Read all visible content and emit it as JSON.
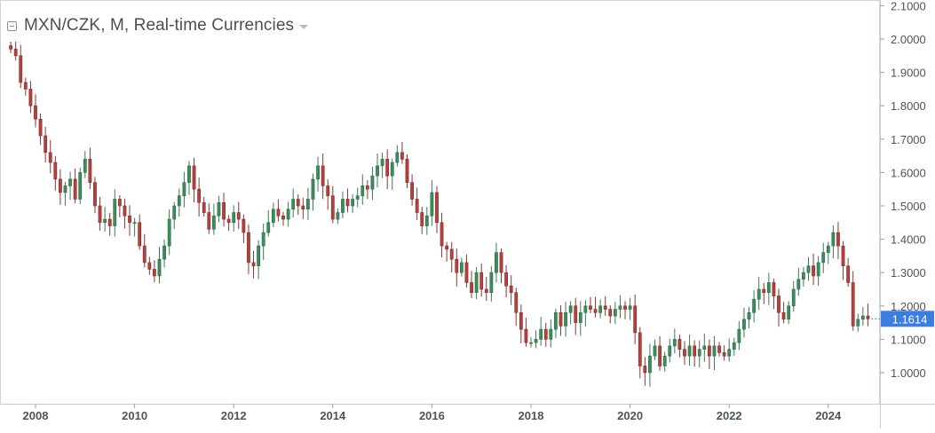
{
  "header": {
    "title": "MXN/CZK, M, Real-time Currencies"
  },
  "colors": {
    "up": "#3c8c5c",
    "down": "#b5413f",
    "price_tag": "#3b7de0",
    "axis_text": "#4e545b",
    "frame": "#d0d4d8"
  },
  "chart_data": {
    "type": "candlestick",
    "interval": "M",
    "symbol": "MXN/CZK",
    "y_ticks": [
      "2.1000",
      "2.0000",
      "1.9000",
      "1.8000",
      "1.7000",
      "1.6000",
      "1.5000",
      "1.4000",
      "1.3000",
      "1.2000",
      "1.1000",
      "1.0000"
    ],
    "x_ticks": [
      "2008",
      "2010",
      "2012",
      "2014",
      "2016",
      "2018",
      "2020",
      "2022",
      "2024"
    ],
    "last_price": "1.1614",
    "ylim": [
      0.955,
      2.11
    ],
    "xlim": [
      "2007-06",
      "2024-12"
    ],
    "approx_monthly_close": [
      [
        2007.5,
        1.97
      ],
      [
        2007.6,
        1.95
      ],
      [
        2007.7,
        1.87
      ],
      [
        2007.8,
        1.85
      ],
      [
        2007.9,
        1.8
      ],
      [
        2008.0,
        1.76
      ],
      [
        2008.1,
        1.71
      ],
      [
        2008.2,
        1.66
      ],
      [
        2008.3,
        1.63
      ],
      [
        2008.4,
        1.58
      ],
      [
        2008.5,
        1.54
      ],
      [
        2008.6,
        1.56
      ],
      [
        2008.7,
        1.58
      ],
      [
        2008.8,
        1.52
      ],
      [
        2008.9,
        1.6
      ],
      [
        2009.0,
        1.64
      ],
      [
        2009.1,
        1.57
      ],
      [
        2009.2,
        1.5
      ],
      [
        2009.3,
        1.45
      ],
      [
        2009.4,
        1.46
      ],
      [
        2009.5,
        1.44
      ],
      [
        2009.6,
        1.52
      ],
      [
        2009.7,
        1.5
      ],
      [
        2009.8,
        1.47
      ],
      [
        2009.9,
        1.45
      ],
      [
        2010.0,
        1.45
      ],
      [
        2010.1,
        1.38
      ],
      [
        2010.2,
        1.33
      ],
      [
        2010.3,
        1.31
      ],
      [
        2010.4,
        1.29
      ],
      [
        2010.5,
        1.34
      ],
      [
        2010.6,
        1.38
      ],
      [
        2010.7,
        1.46
      ],
      [
        2010.8,
        1.5
      ],
      [
        2010.9,
        1.53
      ],
      [
        2011.0,
        1.57
      ],
      [
        2011.1,
        1.62
      ],
      [
        2011.2,
        1.55
      ],
      [
        2011.3,
        1.51
      ],
      [
        2011.4,
        1.48
      ],
      [
        2011.5,
        1.43
      ],
      [
        2011.6,
        1.47
      ],
      [
        2011.7,
        1.51
      ],
      [
        2011.8,
        1.46
      ],
      [
        2011.9,
        1.45
      ],
      [
        2012.0,
        1.48
      ],
      [
        2012.1,
        1.46
      ],
      [
        2012.2,
        1.42
      ],
      [
        2012.3,
        1.33
      ],
      [
        2012.4,
        1.32
      ],
      [
        2012.5,
        1.38
      ],
      [
        2012.6,
        1.42
      ],
      [
        2012.7,
        1.45
      ],
      [
        2012.8,
        1.49
      ],
      [
        2012.9,
        1.47
      ],
      [
        2013.0,
        1.46
      ],
      [
        2013.1,
        1.49
      ],
      [
        2013.2,
        1.52
      ],
      [
        2013.3,
        1.5
      ],
      [
        2013.4,
        1.49
      ],
      [
        2013.5,
        1.52
      ],
      [
        2013.6,
        1.58
      ],
      [
        2013.7,
        1.62
      ],
      [
        2013.8,
        1.56
      ],
      [
        2013.9,
        1.53
      ],
      [
        2014.0,
        1.46
      ],
      [
        2014.1,
        1.48
      ],
      [
        2014.2,
        1.52
      ],
      [
        2014.3,
        1.5
      ],
      [
        2014.4,
        1.52
      ],
      [
        2014.5,
        1.53
      ],
      [
        2014.6,
        1.56
      ],
      [
        2014.7,
        1.55
      ],
      [
        2014.8,
        1.59
      ],
      [
        2014.9,
        1.62
      ],
      [
        2015.0,
        1.64
      ],
      [
        2015.1,
        1.59
      ],
      [
        2015.2,
        1.63
      ],
      [
        2015.3,
        1.66
      ],
      [
        2015.4,
        1.64
      ],
      [
        2015.5,
        1.57
      ],
      [
        2015.6,
        1.52
      ],
      [
        2015.7,
        1.48
      ],
      [
        2015.8,
        1.44
      ],
      [
        2015.9,
        1.47
      ],
      [
        2016.0,
        1.54
      ],
      [
        2016.1,
        1.45
      ],
      [
        2016.2,
        1.38
      ],
      [
        2016.3,
        1.37
      ],
      [
        2016.4,
        1.34
      ],
      [
        2016.5,
        1.3
      ],
      [
        2016.6,
        1.33
      ],
      [
        2016.7,
        1.27
      ],
      [
        2016.8,
        1.24
      ],
      [
        2016.9,
        1.3
      ],
      [
        2017.0,
        1.25
      ],
      [
        2017.1,
        1.24
      ],
      [
        2017.2,
        1.3
      ],
      [
        2017.3,
        1.36
      ],
      [
        2017.4,
        1.3
      ],
      [
        2017.5,
        1.26
      ],
      [
        2017.6,
        1.24
      ],
      [
        2017.7,
        1.18
      ],
      [
        2017.8,
        1.13
      ],
      [
        2017.9,
        1.09
      ],
      [
        2018.0,
        1.09
      ],
      [
        2018.1,
        1.1
      ],
      [
        2018.2,
        1.13
      ],
      [
        2018.3,
        1.1
      ],
      [
        2018.4,
        1.13
      ],
      [
        2018.5,
        1.18
      ],
      [
        2018.6,
        1.14
      ],
      [
        2018.7,
        1.18
      ],
      [
        2018.8,
        1.2
      ],
      [
        2018.9,
        1.15
      ],
      [
        2019.0,
        1.18
      ],
      [
        2019.1,
        1.2
      ],
      [
        2019.2,
        1.19
      ],
      [
        2019.3,
        1.18
      ],
      [
        2019.4,
        1.2
      ],
      [
        2019.5,
        1.19
      ],
      [
        2019.6,
        1.17
      ],
      [
        2019.7,
        1.19
      ],
      [
        2019.8,
        1.2
      ],
      [
        2019.9,
        1.19
      ],
      [
        2020.0,
        1.2
      ],
      [
        2020.1,
        1.12
      ],
      [
        2020.2,
        1.02
      ],
      [
        2020.3,
        1.0
      ],
      [
        2020.4,
        1.05
      ],
      [
        2020.5,
        1.08
      ],
      [
        2020.6,
        1.02
      ],
      [
        2020.7,
        1.05
      ],
      [
        2020.8,
        1.08
      ],
      [
        2020.9,
        1.1
      ],
      [
        2021.0,
        1.07
      ],
      [
        2021.1,
        1.05
      ],
      [
        2021.2,
        1.08
      ],
      [
        2021.3,
        1.05
      ],
      [
        2021.4,
        1.07
      ],
      [
        2021.5,
        1.08
      ],
      [
        2021.6,
        1.05
      ],
      [
        2021.7,
        1.08
      ],
      [
        2021.8,
        1.06
      ],
      [
        2021.9,
        1.05
      ],
      [
        2022.0,
        1.07
      ],
      [
        2022.1,
        1.09
      ],
      [
        2022.2,
        1.13
      ],
      [
        2022.3,
        1.16
      ],
      [
        2022.4,
        1.18
      ],
      [
        2022.5,
        1.22
      ],
      [
        2022.6,
        1.25
      ],
      [
        2022.7,
        1.24
      ],
      [
        2022.8,
        1.27
      ],
      [
        2022.9,
        1.23
      ],
      [
        2023.0,
        1.18
      ],
      [
        2023.1,
        1.16
      ],
      [
        2023.2,
        1.2
      ],
      [
        2023.3,
        1.25
      ],
      [
        2023.4,
        1.28
      ],
      [
        2023.5,
        1.3
      ],
      [
        2023.6,
        1.32
      ],
      [
        2023.7,
        1.29
      ],
      [
        2023.8,
        1.33
      ],
      [
        2023.9,
        1.36
      ],
      [
        2024.0,
        1.38
      ],
      [
        2024.1,
        1.42
      ],
      [
        2024.2,
        1.38
      ],
      [
        2024.3,
        1.32
      ],
      [
        2024.4,
        1.27
      ],
      [
        2024.5,
        1.14
      ],
      [
        2024.6,
        1.16
      ],
      [
        2024.7,
        1.17
      ],
      [
        2024.8,
        1.1614
      ]
    ]
  }
}
